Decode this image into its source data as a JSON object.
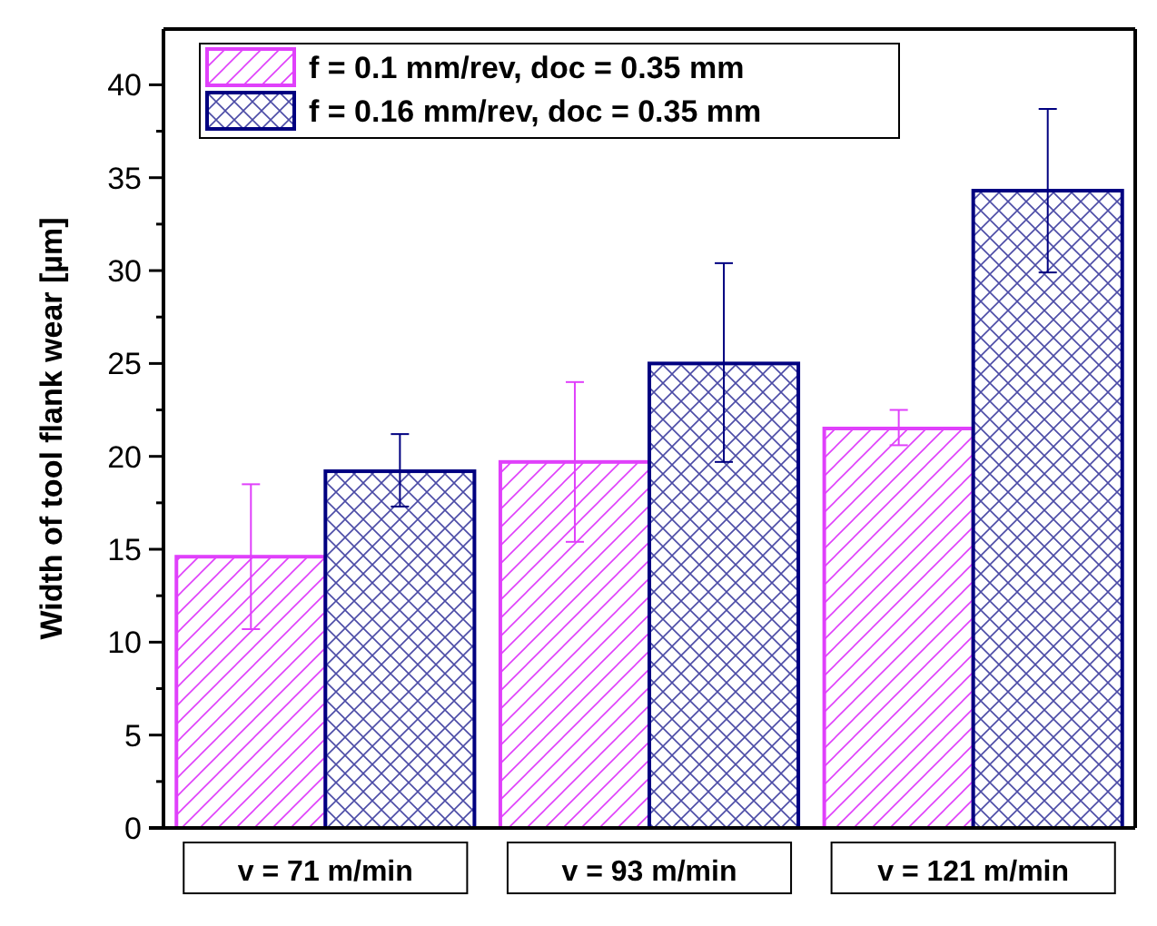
{
  "chart_data": {
    "type": "bar",
    "ylabel": "Width of tool flank wear [µm]",
    "categories": [
      "v = 71 m/min",
      "v = 93 m/min",
      "v = 121 m/min"
    ],
    "series": [
      {
        "name": "f = 0.1 mm/rev, doc = 0.35 mm",
        "color": "#e040fb",
        "values": [
          14.6,
          19.7,
          21.5
        ],
        "errors": [
          [
            10.7,
            18.5
          ],
          [
            15.4,
            24.0
          ],
          [
            20.6,
            22.5
          ]
        ]
      },
      {
        "name": "f = 0.16 mm/rev, doc = 0.35 mm",
        "color": "#000080",
        "values": [
          19.2,
          25.0,
          34.3
        ],
        "errors": [
          [
            17.3,
            21.2
          ],
          [
            19.7,
            30.4
          ],
          [
            29.9,
            38.7
          ]
        ]
      }
    ],
    "ylim": [
      0,
      43
    ],
    "yticks": [
      0,
      {
        "value": 2.5,
        "label": null
      },
      5,
      {
        "value": 7.5,
        "label": null
      },
      10,
      {
        "value": 12.5,
        "label": null
      },
      15,
      {
        "value": 17.5,
        "label": null
      },
      20,
      {
        "value": 22.5,
        "label": null
      },
      25,
      {
        "value": 27.5,
        "label": null
      },
      30,
      {
        "value": 32.5,
        "label": null
      },
      35,
      {
        "value": 37.5,
        "label": null
      },
      40
    ],
    "grid": false,
    "legend": "top left"
  }
}
